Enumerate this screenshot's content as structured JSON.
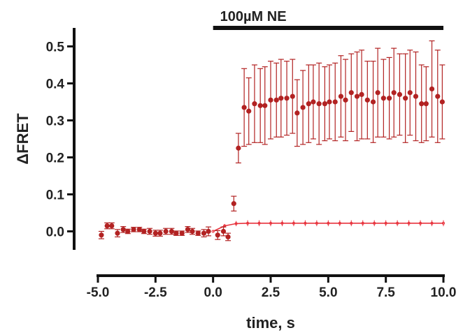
{
  "chart_data": {
    "type": "scatter",
    "title": "",
    "xlabel": "time, s",
    "ylabel": "ΔFRET",
    "xlim": [
      -5.0,
      10.0
    ],
    "ylim": [
      -0.05,
      0.55
    ],
    "x_ticks": [
      "-5.0",
      "-2.5",
      "0.0",
      "2.5",
      "5.0",
      "7.5",
      "10.0"
    ],
    "x_tick_values": [
      -5.0,
      -2.5,
      0.0,
      2.5,
      5.0,
      7.5,
      10.0
    ],
    "y_ticks": [
      "0.0",
      "0.1",
      "0.2",
      "0.3",
      "0.4",
      "0.5"
    ],
    "y_tick_values": [
      0.0,
      0.1,
      0.2,
      0.3,
      0.4,
      0.5
    ],
    "grid": false,
    "colors": {
      "series": "#b22222",
      "fit": "#e8323c",
      "axis": "#111111"
    },
    "annotation": {
      "label": "100µM  NE",
      "x_start": 0.0,
      "x_end": 10.0
    },
    "series": [
      {
        "x": [
          -4.85,
          -4.6,
          -4.4,
          -4.15,
          -3.9,
          -3.7,
          -3.45,
          -3.2,
          -3.0,
          -2.75,
          -2.5,
          -2.3,
          -2.05,
          -1.8,
          -1.6,
          -1.35,
          -1.1,
          -0.9,
          -0.65,
          -0.4,
          -0.2,
          0.2,
          0.45,
          0.65,
          0.9,
          1.1,
          1.35,
          1.55,
          1.8,
          2.05,
          2.25,
          2.5,
          2.75,
          2.95,
          3.2,
          3.45,
          3.65,
          3.9,
          4.15,
          4.35,
          4.6,
          4.85,
          5.05,
          5.3,
          5.55,
          5.75,
          6.0,
          6.25,
          6.45,
          6.7,
          6.95,
          7.15,
          7.4,
          7.65,
          7.85,
          8.1,
          8.35,
          8.55,
          8.8,
          9.05,
          9.25,
          9.5,
          9.75,
          9.95
        ],
        "y": [
          -0.01,
          0.015,
          0.015,
          -0.005,
          0.005,
          0.0,
          0.005,
          0.005,
          0.0,
          0.0,
          -0.005,
          -0.005,
          0.0,
          0.0,
          -0.005,
          -0.005,
          0.005,
          0.0,
          -0.005,
          -0.005,
          0.0,
          -0.01,
          0.0,
          -0.015,
          0.075,
          0.225,
          0.335,
          0.325,
          0.345,
          0.34,
          0.34,
          0.355,
          0.355,
          0.36,
          0.36,
          0.365,
          0.32,
          0.335,
          0.345,
          0.35,
          0.345,
          0.345,
          0.35,
          0.35,
          0.365,
          0.355,
          0.375,
          0.365,
          0.37,
          0.355,
          0.35,
          0.375,
          0.36,
          0.36,
          0.375,
          0.37,
          0.36,
          0.375,
          0.365,
          0.345,
          0.345,
          0.385,
          0.365,
          0.35
        ],
        "error": [
          0.01,
          0.008,
          0.008,
          0.01,
          0.008,
          0.006,
          0.006,
          0.006,
          0.006,
          0.008,
          0.008,
          0.008,
          0.008,
          0.008,
          0.006,
          0.006,
          0.008,
          0.008,
          0.006,
          0.01,
          0.012,
          0.012,
          0.012,
          0.01,
          0.02,
          0.04,
          0.105,
          0.09,
          0.105,
          0.1,
          0.105,
          0.105,
          0.1,
          0.105,
          0.1,
          0.1,
          0.09,
          0.1,
          0.105,
          0.1,
          0.11,
          0.1,
          0.1,
          0.105,
          0.11,
          0.11,
          0.105,
          0.12,
          0.12,
          0.105,
          0.11,
          0.12,
          0.105,
          0.11,
          0.12,
          0.11,
          0.12,
          0.115,
          0.12,
          0.105,
          0.1,
          0.13,
          0.125,
          0.1
        ]
      },
      {
        "x": [
          0.0,
          0.5,
          1.0,
          1.5,
          2.0,
          2.5,
          3.0,
          3.5,
          4.0,
          4.5,
          5.0,
          5.5,
          6.0,
          6.5,
          7.0,
          7.5,
          8.0,
          8.5,
          9.0,
          9.5,
          10.0
        ],
        "y": [
          0.0,
          0.015,
          0.021,
          0.022,
          0.022,
          0.022,
          0.022,
          0.022,
          0.022,
          0.022,
          0.022,
          0.022,
          0.022,
          0.022,
          0.022,
          0.022,
          0.022,
          0.022,
          0.022,
          0.022,
          0.022
        ],
        "error": [
          0.0,
          0.005,
          0.007,
          0.008,
          0.008,
          0.008,
          0.008,
          0.008,
          0.008,
          0.008,
          0.008,
          0.008,
          0.008,
          0.008,
          0.008,
          0.008,
          0.008,
          0.008,
          0.008,
          0.008,
          0.008
        ]
      }
    ]
  }
}
